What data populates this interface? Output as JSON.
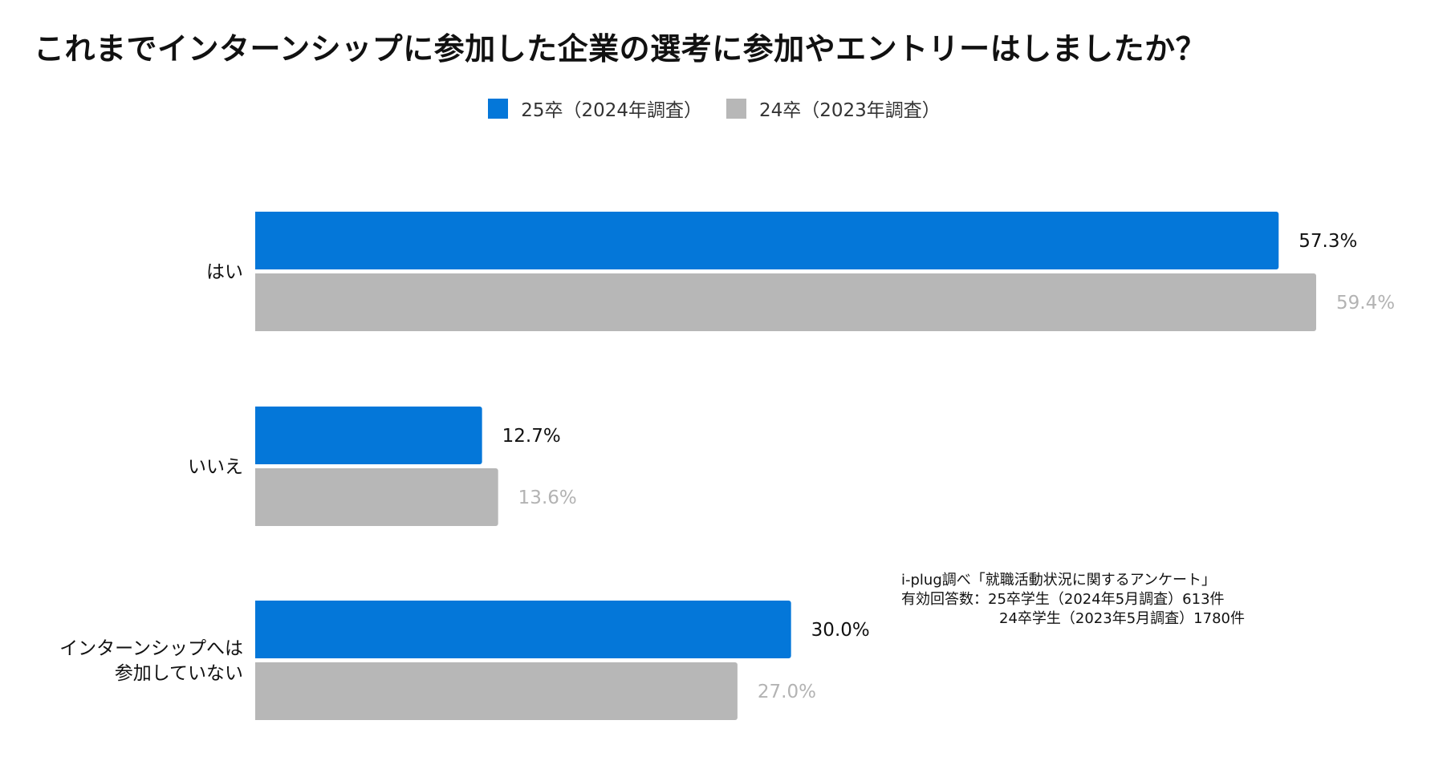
{
  "chart_data": {
    "type": "bar",
    "orientation": "horizontal",
    "title": "これまでインターンシップに参加した企業の選考に参加やエントリーはしましたか？",
    "categories": [
      "はい",
      "いいえ",
      "インターンシップへは\n参加していない"
    ],
    "series": [
      {
        "name": "25卒（2024年調査）",
        "color": "#0477d9",
        "label_color": "#111111",
        "values": [
          57.3,
          12.7,
          30.0
        ],
        "labels": [
          "57.3%",
          "12.7%",
          "30.0%"
        ]
      },
      {
        "name": "24卒（2023年調査）",
        "color": "#b7b7b7",
        "label_color": "#b3b3b3",
        "values": [
          59.4,
          13.6,
          27.0
        ],
        "labels": [
          "59.4%",
          "13.6%",
          "27.0%"
        ]
      }
    ],
    "xlim": [
      0,
      70
    ],
    "xlabel": "",
    "ylabel": "",
    "grid": false,
    "legend": "top-center"
  },
  "note": {
    "line1": "i-plug調べ「就職活動状況に関するアンケート」",
    "line2": "有効回答数：25卒学生（2024年5月調査）613件",
    "line3": "24卒学生（2023年5月調査）1780件"
  }
}
